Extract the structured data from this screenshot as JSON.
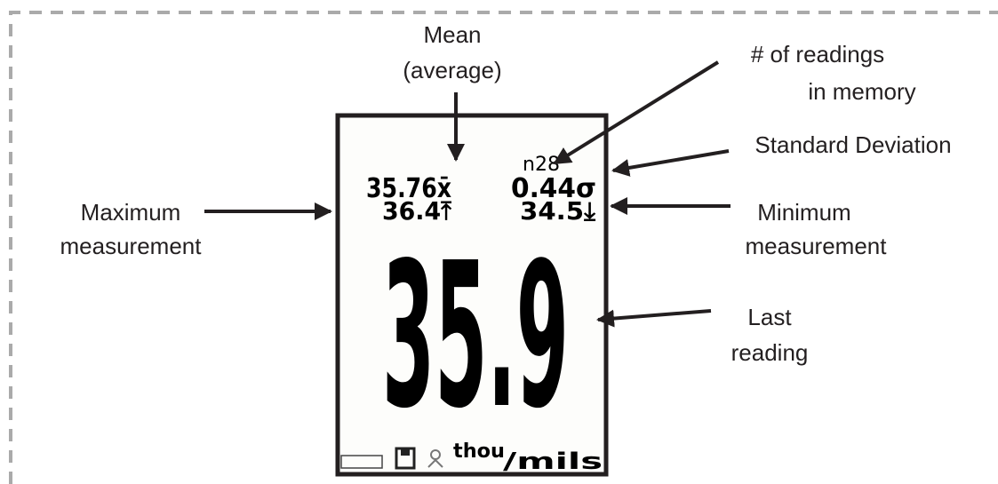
{
  "screen": {
    "count": "n28",
    "mean": "35.76x̄",
    "std_dev": "0.44σ",
    "maximum": "36.4⤒",
    "minimum": "34.5⤓",
    "last_reading": "35.9",
    "units": {
      "top": "thou",
      "bottom": "/mils"
    }
  },
  "callouts": [
    {
      "lines": [
        "Mean",
        "(average)"
      ]
    },
    {
      "lines": [
        "# of readings",
        "in memory"
      ]
    },
    {
      "lines": [
        "Standard Deviation"
      ]
    },
    {
      "lines": [
        "Maximum",
        "measurement"
      ]
    },
    {
      "lines": [
        "Minimum",
        "measurement"
      ]
    },
    {
      "lines": [
        "Last",
        "reading"
      ]
    }
  ]
}
